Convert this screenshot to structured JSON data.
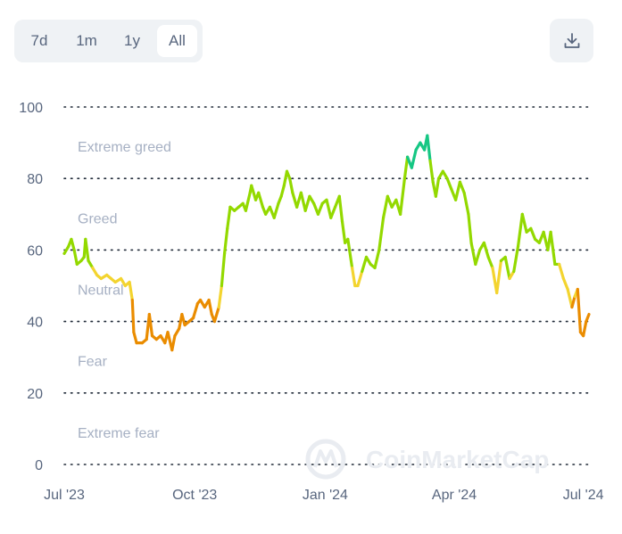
{
  "range": {
    "options": [
      {
        "label": "7d",
        "active": false
      },
      {
        "label": "1m",
        "active": false
      },
      {
        "label": "1y",
        "active": false
      },
      {
        "label": "All",
        "active": true
      }
    ]
  },
  "download": {
    "icon": "download-icon"
  },
  "watermark": {
    "text": "CoinMarketCap"
  },
  "colors": {
    "extreme_fear": "#ea3943",
    "fear": "#ea8c00",
    "neutral": "#f3d42f",
    "greed": "#93d900",
    "extreme_greed": "#16c784",
    "grid": "#1f2937",
    "tick_text": "#58667e",
    "zone_text": "#a6b0c3"
  },
  "chart_data": {
    "type": "line",
    "title": "",
    "xlabel": "",
    "ylabel": "",
    "ylim": [
      0,
      100
    ],
    "yticks": [
      "0",
      "20",
      "40",
      "60",
      "80",
      "100"
    ],
    "xlim": [
      "2023-07-01",
      "2024-07-05"
    ],
    "xticks": [
      {
        "label": "Jul '23",
        "date": "2023-07-01"
      },
      {
        "label": "Oct '23",
        "date": "2023-10-01"
      },
      {
        "label": "Jan '24",
        "date": "2024-01-01"
      },
      {
        "label": "Apr '24",
        "date": "2024-04-01"
      },
      {
        "label": "Jul '24",
        "date": "2024-07-01"
      }
    ],
    "zones": [
      {
        "label": "Extreme greed",
        "y": 89
      },
      {
        "label": "Greed",
        "y": 69
      },
      {
        "label": "Neutral",
        "y": 49
      },
      {
        "label": "Fear",
        "y": 29
      },
      {
        "label": "Extreme fear",
        "y": 9
      }
    ],
    "grid": true,
    "legend": "none",
    "series": [
      {
        "points": [
          [
            "2023-07-01",
            59
          ],
          [
            "2023-07-04",
            61
          ],
          [
            "2023-07-06",
            63
          ],
          [
            "2023-07-08",
            60
          ],
          [
            "2023-07-10",
            56
          ],
          [
            "2023-07-13",
            57
          ],
          [
            "2023-07-15",
            58
          ],
          [
            "2023-07-16",
            63
          ],
          [
            "2023-07-18",
            57
          ],
          [
            "2023-07-21",
            55
          ],
          [
            "2023-07-24",
            53
          ],
          [
            "2023-07-27",
            52
          ],
          [
            "2023-07-31",
            53
          ],
          [
            "2023-08-03",
            52
          ],
          [
            "2023-08-06",
            51
          ],
          [
            "2023-08-10",
            52
          ],
          [
            "2023-08-13",
            50
          ],
          [
            "2023-08-16",
            51
          ],
          [
            "2023-08-18",
            46
          ],
          [
            "2023-08-19",
            37
          ],
          [
            "2023-08-21",
            34
          ],
          [
            "2023-08-25",
            34
          ],
          [
            "2023-08-28",
            35
          ],
          [
            "2023-08-30",
            42
          ],
          [
            "2023-09-01",
            36
          ],
          [
            "2023-09-04",
            35
          ],
          [
            "2023-09-07",
            36
          ],
          [
            "2023-09-10",
            34
          ],
          [
            "2023-09-12",
            37
          ],
          [
            "2023-09-15",
            32
          ],
          [
            "2023-09-17",
            36
          ],
          [
            "2023-09-20",
            38
          ],
          [
            "2023-09-22",
            42
          ],
          [
            "2023-09-24",
            39
          ],
          [
            "2023-09-27",
            40
          ],
          [
            "2023-09-30",
            41
          ],
          [
            "2023-10-03",
            45
          ],
          [
            "2023-10-05",
            46
          ],
          [
            "2023-10-08",
            44
          ],
          [
            "2023-10-11",
            46
          ],
          [
            "2023-10-13",
            42
          ],
          [
            "2023-10-15",
            40
          ],
          [
            "2023-10-18",
            44
          ],
          [
            "2023-10-20",
            50
          ],
          [
            "2023-10-22",
            59
          ],
          [
            "2023-10-24",
            66
          ],
          [
            "2023-10-26",
            72
          ],
          [
            "2023-10-29",
            71
          ],
          [
            "2023-11-01",
            72
          ],
          [
            "2023-11-04",
            73
          ],
          [
            "2023-11-06",
            71
          ],
          [
            "2023-11-09",
            76
          ],
          [
            "2023-11-10",
            78
          ],
          [
            "2023-11-13",
            74
          ],
          [
            "2023-11-15",
            76
          ],
          [
            "2023-11-18",
            72
          ],
          [
            "2023-11-20",
            70
          ],
          [
            "2023-11-23",
            72
          ],
          [
            "2023-11-26",
            69
          ],
          [
            "2023-11-29",
            73
          ],
          [
            "2023-12-01",
            75
          ],
          [
            "2023-12-03",
            78
          ],
          [
            "2023-12-05",
            82
          ],
          [
            "2023-12-07",
            80
          ],
          [
            "2023-12-09",
            76
          ],
          [
            "2023-12-12",
            72
          ],
          [
            "2023-12-15",
            76
          ],
          [
            "2023-12-18",
            71
          ],
          [
            "2023-12-21",
            75
          ],
          [
            "2023-12-24",
            73
          ],
          [
            "2023-12-27",
            70
          ],
          [
            "2023-12-30",
            73
          ],
          [
            "2024-01-02",
            74
          ],
          [
            "2024-01-05",
            69
          ],
          [
            "2024-01-08",
            72
          ],
          [
            "2024-01-11",
            75
          ],
          [
            "2024-01-13",
            68
          ],
          [
            "2024-01-15",
            62
          ],
          [
            "2024-01-17",
            63
          ],
          [
            "2024-01-20",
            55
          ],
          [
            "2024-01-22",
            50
          ],
          [
            "2024-01-24",
            50
          ],
          [
            "2024-01-27",
            54
          ],
          [
            "2024-01-30",
            58
          ],
          [
            "2024-02-02",
            56
          ],
          [
            "2024-02-05",
            55
          ],
          [
            "2024-02-08",
            60
          ],
          [
            "2024-02-11",
            69
          ],
          [
            "2024-02-14",
            75
          ],
          [
            "2024-02-17",
            72
          ],
          [
            "2024-02-20",
            74
          ],
          [
            "2024-02-23",
            70
          ],
          [
            "2024-02-26",
            80
          ],
          [
            "2024-02-28",
            86
          ],
          [
            "2024-03-02",
            83
          ],
          [
            "2024-03-05",
            88
          ],
          [
            "2024-03-08",
            90
          ],
          [
            "2024-03-11",
            88
          ],
          [
            "2024-03-13",
            92
          ],
          [
            "2024-03-15",
            85
          ],
          [
            "2024-03-17",
            79
          ],
          [
            "2024-03-19",
            75
          ],
          [
            "2024-03-21",
            80
          ],
          [
            "2024-03-24",
            82
          ],
          [
            "2024-03-27",
            80
          ],
          [
            "2024-03-30",
            77
          ],
          [
            "2024-04-02",
            74
          ],
          [
            "2024-04-05",
            79
          ],
          [
            "2024-04-08",
            76
          ],
          [
            "2024-04-11",
            70
          ],
          [
            "2024-04-13",
            62
          ],
          [
            "2024-04-16",
            56
          ],
          [
            "2024-04-19",
            60
          ],
          [
            "2024-04-22",
            62
          ],
          [
            "2024-04-25",
            58
          ],
          [
            "2024-04-28",
            55
          ],
          [
            "2024-05-01",
            48
          ],
          [
            "2024-05-04",
            57
          ],
          [
            "2024-05-07",
            58
          ],
          [
            "2024-05-10",
            52
          ],
          [
            "2024-05-13",
            54
          ],
          [
            "2024-05-16",
            61
          ],
          [
            "2024-05-19",
            70
          ],
          [
            "2024-05-22",
            65
          ],
          [
            "2024-05-25",
            66
          ],
          [
            "2024-05-28",
            63
          ],
          [
            "2024-05-31",
            62
          ],
          [
            "2024-06-03",
            65
          ],
          [
            "2024-06-06",
            60
          ],
          [
            "2024-06-08",
            65
          ],
          [
            "2024-06-11",
            56
          ],
          [
            "2024-06-14",
            56
          ],
          [
            "2024-06-17",
            52
          ],
          [
            "2024-06-20",
            49
          ],
          [
            "2024-06-23",
            44
          ],
          [
            "2024-06-25",
            47
          ],
          [
            "2024-06-27",
            49
          ],
          [
            "2024-06-29",
            37
          ],
          [
            "2024-07-01",
            36
          ],
          [
            "2024-07-03",
            40
          ],
          [
            "2024-07-05",
            42
          ]
        ]
      }
    ]
  }
}
